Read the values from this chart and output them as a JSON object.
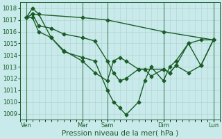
{
  "background_color": "#c8eaea",
  "grid_color": "#b0d0cc",
  "line_color": "#1a5c28",
  "marker": "D",
  "markersize": 2.5,
  "linewidth": 1.0,
  "ylim": [
    1008.5,
    1018.5
  ],
  "yticks": [
    1009,
    1010,
    1011,
    1012,
    1013,
    1014,
    1015,
    1016,
    1017,
    1018
  ],
  "xlabel": "Pression niveau de la mer( hPa )",
  "xlabel_fontsize": 7.5,
  "tick_fontsize": 6,
  "xtick_labels": [
    "Ven",
    "Mar",
    "Sam",
    "Dim",
    "Lun"
  ],
  "xtick_positions": [
    0,
    9,
    13,
    22,
    30
  ],
  "vline_positions": [
    0,
    9,
    13,
    22,
    30
  ],
  "xlim": [
    -1,
    31
  ],
  "series": [
    {
      "x": [
        0,
        1,
        9,
        13,
        22,
        30
      ],
      "y": [
        1017.2,
        1017.5,
        1017.2,
        1017.0,
        1016.0,
        1015.3
      ]
    },
    {
      "x": [
        0,
        1,
        2,
        4,
        6,
        9,
        11,
        13,
        14,
        15,
        16,
        18,
        19,
        20,
        22,
        23,
        24,
        26,
        28,
        30
      ],
      "y": [
        1017.2,
        1018.0,
        1017.5,
        1015.5,
        1014.4,
        1013.5,
        1012.5,
        1011.8,
        1013.5,
        1013.8,
        1013.5,
        1012.8,
        1012.8,
        1012.2,
        1012.8,
        1012.5,
        1013.1,
        1015.0,
        1015.3,
        1015.3
      ]
    },
    {
      "x": [
        0,
        1,
        2,
        4,
        6,
        9,
        11,
        13,
        14,
        15,
        16,
        18,
        19,
        20,
        22,
        23,
        24,
        26,
        28,
        30
      ],
      "y": [
        1017.2,
        1017.2,
        1016.0,
        1015.5,
        1014.3,
        1013.8,
        1013.5,
        1011.0,
        1010.0,
        1009.5,
        1008.9,
        1010.0,
        1011.8,
        1013.0,
        1011.8,
        1013.0,
        1013.5,
        1015.0,
        1013.1,
        1015.3
      ]
    },
    {
      "x": [
        0,
        1,
        2,
        4,
        6,
        9,
        11,
        13,
        14,
        15,
        16,
        18,
        22,
        23,
        24,
        26,
        28,
        30
      ],
      "y": [
        1017.2,
        1017.5,
        1016.5,
        1016.3,
        1015.8,
        1015.5,
        1015.2,
        1013.5,
        1012.5,
        1011.8,
        1012.0,
        1012.8,
        1012.8,
        1012.5,
        1013.1,
        1012.5,
        1013.1,
        1015.3
      ]
    }
  ]
}
